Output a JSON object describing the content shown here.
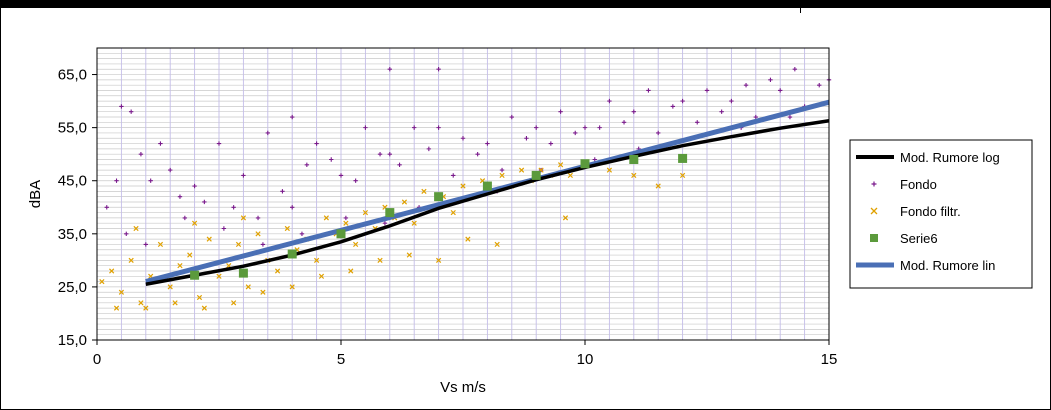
{
  "chart_data": {
    "type": "scatter",
    "title": "",
    "xlabel": "Vs m/s",
    "ylabel": "dBA",
    "xlim": [
      0,
      15
    ],
    "ylim": [
      15,
      70
    ],
    "x_ticks": [
      0,
      5,
      10,
      15
    ],
    "x_tick_labels": [
      "0",
      "5",
      "10",
      "15"
    ],
    "y_ticks": [
      15,
      25,
      35,
      45,
      55,
      65
    ],
    "y_tick_labels": [
      "15,0",
      "25,0",
      "35,0",
      "45,0",
      "55,0",
      "65,0"
    ],
    "grid": true,
    "legend_position": "right",
    "series": [
      {
        "name": "Mod. Rumore log",
        "kind": "line",
        "color": "#000000",
        "x": [
          1,
          2,
          3,
          4,
          5,
          6,
          7,
          8,
          9,
          10,
          11,
          12,
          13,
          14,
          15
        ],
        "y": [
          25.5,
          27.2,
          28.9,
          31.0,
          33.5,
          36.5,
          39.8,
          42.5,
          45.2,
          47.5,
          49.6,
          51.6,
          53.3,
          54.9,
          56.3
        ]
      },
      {
        "name": "Fondo",
        "kind": "points",
        "marker": "+",
        "color": "#7a1a8c",
        "x": [
          0.2,
          0.4,
          0.5,
          0.7,
          0.9,
          1.1,
          1.3,
          1.5,
          1.7,
          2.0,
          2.2,
          2.5,
          2.8,
          3.0,
          3.3,
          3.5,
          3.8,
          4.0,
          4.3,
          4.5,
          4.8,
          5.0,
          5.3,
          5.5,
          5.8,
          6.0,
          6.2,
          6.5,
          6.8,
          7.0,
          7.3,
          7.5,
          7.8,
          8.0,
          8.3,
          8.5,
          8.8,
          9.0,
          9.3,
          9.5,
          9.8,
          10.0,
          10.3,
          10.5,
          10.8,
          11.0,
          11.3,
          11.5,
          11.8,
          12.0,
          12.3,
          12.5,
          12.8,
          13.0,
          13.3,
          13.5,
          13.8,
          14.0,
          14.3,
          14.5,
          14.8,
          15.0,
          0.6,
          1.0,
          1.8,
          2.6,
          3.4,
          4.2,
          5.1,
          5.9,
          6.6,
          7.4,
          8.2,
          9.1,
          10.2,
          11.1,
          12.2,
          13.2,
          14.2,
          6.0,
          7.0,
          4.0
        ],
        "y": [
          40,
          45,
          59,
          58,
          50,
          45,
          52,
          47,
          42,
          44,
          41,
          52,
          40,
          46,
          38,
          54,
          43,
          40,
          48,
          52,
          49,
          46,
          45,
          55,
          50,
          50,
          48,
          55,
          51,
          55,
          46,
          53,
          50,
          52,
          47,
          57,
          53,
          55,
          52,
          58,
          54,
          55,
          55,
          60,
          56,
          58,
          62,
          54,
          59,
          60,
          56,
          62,
          58,
          60,
          63,
          57,
          64,
          62,
          66,
          59,
          63,
          64,
          35,
          33,
          38,
          36,
          33,
          35,
          38,
          37,
          40,
          41,
          43,
          47,
          49,
          51,
          53,
          55,
          57,
          66,
          66,
          57
        ]
      },
      {
        "name": "Fondo filtr.",
        "kind": "points",
        "marker": "x",
        "color": "#e0a100",
        "x": [
          0.1,
          0.3,
          0.5,
          0.7,
          0.9,
          1.1,
          1.3,
          1.5,
          1.7,
          1.9,
          2.1,
          2.3,
          2.5,
          2.7,
          2.9,
          3.1,
          3.3,
          3.5,
          3.7,
          3.9,
          4.1,
          4.3,
          4.5,
          4.7,
          4.9,
          5.1,
          5.3,
          5.5,
          5.7,
          5.9,
          6.1,
          6.3,
          6.5,
          6.7,
          6.9,
          7.1,
          7.3,
          7.5,
          7.7,
          7.9,
          8.1,
          8.3,
          8.5,
          8.7,
          8.9,
          9.1,
          9.3,
          9.5,
          9.7,
          10.0,
          10.5,
          11.0,
          11.5,
          12.0,
          0.4,
          1.0,
          1.6,
          2.2,
          2.8,
          3.4,
          4.0,
          4.6,
          5.2,
          5.8,
          6.4,
          7.0,
          7.6,
          8.2,
          9.6,
          0.8,
          2.0,
          3.0
        ],
        "y": [
          26,
          28,
          24,
          30,
          22,
          27,
          33,
          25,
          29,
          31,
          23,
          34,
          27,
          29,
          33,
          25,
          35,
          30,
          28,
          36,
          32,
          34,
          30,
          38,
          35,
          37,
          33,
          39,
          36,
          40,
          38,
          41,
          37,
          43,
          40,
          42,
          39,
          44,
          42,
          45,
          43,
          46,
          44,
          47,
          45,
          47,
          46,
          48,
          46,
          48,
          47,
          46,
          44,
          46,
          21,
          21,
          22,
          21,
          22,
          24,
          25,
          27,
          28,
          30,
          31,
          30,
          34,
          33,
          38,
          36,
          37,
          38
        ]
      },
      {
        "name": "Serie6",
        "kind": "points",
        "marker": "square",
        "color": "#5b9a3c",
        "x": [
          2,
          3,
          4,
          5,
          6,
          7,
          8,
          9,
          10,
          11,
          12
        ],
        "y": [
          27.2,
          27.6,
          31.2,
          35.0,
          39.0,
          42.0,
          44.0,
          46.0,
          48.2,
          49.0,
          49.2
        ]
      },
      {
        "name": "Mod. Rumore lin",
        "kind": "line",
        "color": "#4a6fb5",
        "x": [
          1,
          15
        ],
        "y": [
          26.0,
          59.8
        ]
      }
    ]
  }
}
